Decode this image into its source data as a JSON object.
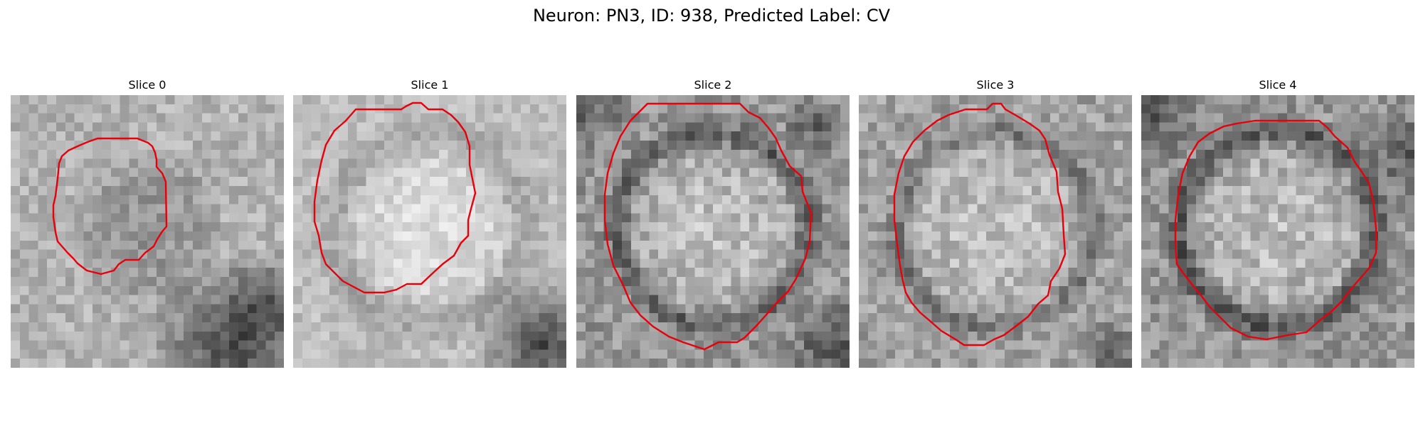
{
  "figure": {
    "title": "Neuron: PN3, ID: 938, Predicted Label: CV"
  },
  "contour_color": "#e8000b",
  "panels": [
    {
      "title": "Slice 0"
    },
    {
      "title": "Slice 1"
    },
    {
      "title": "Slice 2"
    },
    {
      "title": "Slice 3"
    },
    {
      "title": "Slice 4"
    }
  ]
}
